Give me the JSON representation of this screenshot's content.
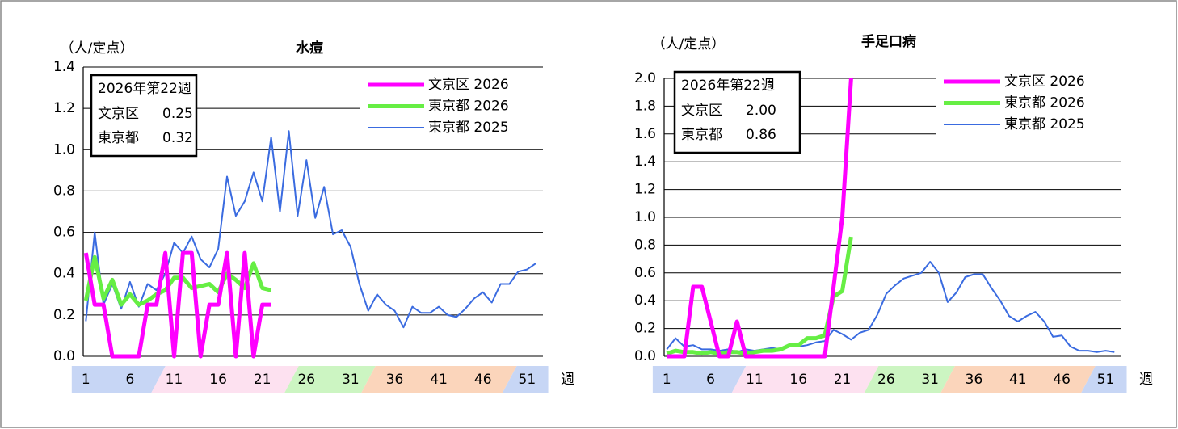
{
  "chart_data": [
    {
      "type": "line",
      "title": "水痘",
      "y_label": "（人/定点）",
      "x_label": "週",
      "x": [
        1,
        2,
        3,
        4,
        5,
        6,
        7,
        8,
        9,
        10,
        11,
        12,
        13,
        14,
        15,
        16,
        17,
        18,
        19,
        20,
        21,
        22,
        23,
        24,
        25,
        26,
        27,
        28,
        29,
        30,
        31,
        32,
        33,
        34,
        35,
        36,
        37,
        38,
        39,
        40,
        41,
        42,
        43,
        44,
        45,
        46,
        47,
        48,
        49,
        50,
        51,
        52
      ],
      "xlim": [
        0.7,
        52.8
      ],
      "xticks": [
        1,
        6,
        11,
        16,
        21,
        26,
        31,
        36,
        41,
        46,
        51
      ],
      "ylim": [
        0,
        1.4
      ],
      "yticks": [
        {
          "value": 0,
          "label": "0.0"
        },
        0.2,
        0.4,
        0.6,
        0.8,
        {
          "value": 1,
          "label": "1.0"
        },
        1.2,
        1.4
      ],
      "grid": true,
      "series": [
        {
          "name": "文京区 2026",
          "color": "#ff00ff",
          "values": [
            0.5,
            0.25,
            0.25,
            0,
            0,
            0,
            0,
            0.25,
            0.25,
            0.5,
            0,
            0.5,
            0.5,
            0,
            0.25,
            0.25,
            0.5,
            0,
            0.5,
            0,
            0.25,
            0.25,
            null,
            null,
            null,
            null,
            null,
            null,
            null,
            null,
            null,
            null,
            null,
            null,
            null,
            null,
            null,
            null,
            null,
            null,
            null,
            null,
            null,
            null,
            null,
            null,
            null,
            null,
            null,
            null,
            null,
            null
          ]
        },
        {
          "name": "東京都 2026",
          "color": "#66ee44",
          "values": [
            0.27,
            0.48,
            0.28,
            0.37,
            0.25,
            0.3,
            0.25,
            0.27,
            0.3,
            0.32,
            0.38,
            0.38,
            0.33,
            0.34,
            0.35,
            0.31,
            0.4,
            0.37,
            0.33,
            0.45,
            0.33,
            0.32,
            null,
            null,
            null,
            null,
            null,
            null,
            null,
            null,
            null,
            null,
            null,
            null,
            null,
            null,
            null,
            null,
            null,
            null,
            null,
            null,
            null,
            null,
            null,
            null,
            null,
            null,
            null,
            null,
            null,
            null
          ]
        },
        {
          "name": "東京都 2025",
          "color": "#3a6be0",
          "values": [
            0.17,
            0.6,
            0.25,
            0.35,
            0.23,
            0.36,
            0.24,
            0.35,
            0.32,
            0.4,
            0.55,
            0.5,
            0.58,
            0.47,
            0.43,
            0.52,
            0.87,
            0.68,
            0.75,
            0.89,
            0.75,
            1.06,
            0.7,
            1.09,
            0.68,
            0.95,
            0.67,
            0.82,
            0.59,
            0.61,
            0.53,
            0.35,
            0.22,
            0.3,
            0.25,
            0.22,
            0.14,
            0.24,
            0.21,
            0.21,
            0.24,
            0.2,
            0.19,
            0.23,
            0.28,
            0.31,
            0.26,
            0.35,
            0.35,
            0.41,
            0.42,
            0.45
          ]
        }
      ],
      "info_box": {
        "title": "2026年第22週",
        "rows": [
          {
            "name": "文京区",
            "value": 0.25
          },
          {
            "name": "東京都",
            "value": 0.32
          }
        ]
      }
    },
    {
      "type": "line",
      "title": "手足口病",
      "y_label": "（人/定点）",
      "x_label": "週",
      "x": [
        1,
        2,
        3,
        4,
        5,
        6,
        7,
        8,
        9,
        10,
        11,
        12,
        13,
        14,
        15,
        16,
        17,
        18,
        19,
        20,
        21,
        22,
        23,
        24,
        25,
        26,
        27,
        28,
        29,
        30,
        31,
        32,
        33,
        34,
        35,
        36,
        37,
        38,
        39,
        40,
        41,
        42,
        43,
        44,
        45,
        46,
        47,
        48,
        49,
        50,
        51,
        52
      ],
      "xlim": [
        0.7,
        52.8
      ],
      "xticks": [
        1,
        6,
        11,
        16,
        21,
        26,
        31,
        36,
        41,
        46,
        51
      ],
      "ylim": [
        0,
        2
      ],
      "yticks": [
        {
          "value": 0,
          "label": "0.0"
        },
        0.2,
        0.4,
        0.6,
        0.8,
        {
          "value": 1,
          "label": "1.0"
        },
        1.2,
        1.4,
        1.6,
        1.8,
        {
          "value": 2,
          "label": "2.0"
        }
      ],
      "grid": true,
      "series": [
        {
          "name": "文京区 2026",
          "color": "#ff00ff",
          "values": [
            0,
            0,
            0,
            0.5,
            0.5,
            0.25,
            0,
            0,
            0.25,
            0,
            0,
            0,
            0,
            0,
            0,
            0,
            0,
            0,
            0,
            0.5,
            1,
            2,
            null,
            null,
            null,
            null,
            null,
            null,
            null,
            null,
            null,
            null,
            null,
            null,
            null,
            null,
            null,
            null,
            null,
            null,
            null,
            null,
            null,
            null,
            null,
            null,
            null,
            null,
            null,
            null,
            null,
            null
          ]
        },
        {
          "name": "東京都 2026",
          "color": "#66ee44",
          "values": [
            0.02,
            0.04,
            0.03,
            0.03,
            0.02,
            0.03,
            0.02,
            0.03,
            0.03,
            0.02,
            0.03,
            0.04,
            0.04,
            0.05,
            0.08,
            0.08,
            0.13,
            0.13,
            0.15,
            0.43,
            0.47,
            0.86,
            null,
            null,
            null,
            null,
            null,
            null,
            null,
            null,
            null,
            null,
            null,
            null,
            null,
            null,
            null,
            null,
            null,
            null,
            null,
            null,
            null,
            null,
            null,
            null,
            null,
            null,
            null,
            null,
            null,
            null
          ]
        },
        {
          "name": "東京都 2025",
          "color": "#3a6be0",
          "values": [
            0.05,
            0.13,
            0.07,
            0.08,
            0.05,
            0.05,
            0.04,
            0.05,
            0.03,
            0.05,
            0.04,
            0.05,
            0.06,
            0.05,
            0.07,
            0.07,
            0.08,
            0.1,
            0.11,
            0.19,
            0.16,
            0.12,
            0.17,
            0.19,
            0.3,
            0.45,
            0.51,
            0.56,
            0.58,
            0.6,
            0.68,
            0.6,
            0.39,
            0.46,
            0.57,
            0.59,
            0.59,
            0.49,
            0.4,
            0.29,
            0.25,
            0.29,
            0.32,
            0.25,
            0.14,
            0.15,
            0.07,
            0.04,
            0.04,
            0.03,
            0.04,
            0.03
          ]
        }
      ],
      "info_box": {
        "title": "2026年第22週",
        "rows": [
          {
            "name": "文京区",
            "value": 2,
            "value_label": "2.00"
          },
          {
            "name": "東京都",
            "value": 0.86
          }
        ]
      }
    }
  ]
}
